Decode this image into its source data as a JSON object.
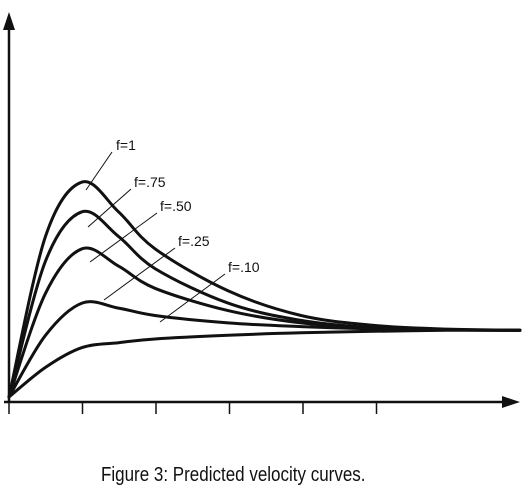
{
  "chart_data": {
    "type": "line",
    "title": "",
    "xlabel": "",
    "ylabel": "",
    "x_ticks": 6,
    "series": [
      {
        "name": "f=1",
        "points": [
          [
            0,
            0
          ],
          [
            0.5,
            0.65
          ],
          [
            1,
            0.87
          ],
          [
            1.5,
            0.75
          ],
          [
            2,
            0.6
          ],
          [
            3,
            0.43
          ],
          [
            4,
            0.33
          ],
          [
            5,
            0.29
          ],
          [
            6,
            0.275
          ],
          [
            7,
            0.27
          ]
        ]
      },
      {
        "name": "f=.75",
        "points": [
          [
            0,
            0
          ],
          [
            0.5,
            0.55
          ],
          [
            1,
            0.75
          ],
          [
            1.5,
            0.65
          ],
          [
            2,
            0.52
          ],
          [
            3,
            0.38
          ],
          [
            4,
            0.31
          ],
          [
            5,
            0.28
          ],
          [
            6,
            0.272
          ],
          [
            7,
            0.27
          ]
        ]
      },
      {
        "name": "f=.50",
        "points": [
          [
            0,
            0
          ],
          [
            0.5,
            0.42
          ],
          [
            1,
            0.6
          ],
          [
            1.5,
            0.53
          ],
          [
            2,
            0.44
          ],
          [
            3,
            0.35
          ],
          [
            4,
            0.3
          ],
          [
            5,
            0.28
          ],
          [
            6,
            0.272
          ],
          [
            7,
            0.27
          ]
        ]
      },
      {
        "name": "f=.25",
        "points": [
          [
            0,
            0
          ],
          [
            0.5,
            0.25
          ],
          [
            1,
            0.38
          ],
          [
            1.5,
            0.36
          ],
          [
            2,
            0.33
          ],
          [
            3,
            0.3
          ],
          [
            4,
            0.285
          ],
          [
            5,
            0.276
          ],
          [
            6,
            0.272
          ],
          [
            7,
            0.27
          ]
        ]
      },
      {
        "name": "f=.10",
        "points": [
          [
            0,
            0
          ],
          [
            0.5,
            0.12
          ],
          [
            1,
            0.2
          ],
          [
            1.5,
            0.22
          ],
          [
            2,
            0.235
          ],
          [
            3,
            0.25
          ],
          [
            4,
            0.26
          ],
          [
            5,
            0.266
          ],
          [
            6,
            0.27
          ],
          [
            7,
            0.27
          ]
        ]
      }
    ]
  },
  "caption": "Figure 3: Predicted velocity curves."
}
